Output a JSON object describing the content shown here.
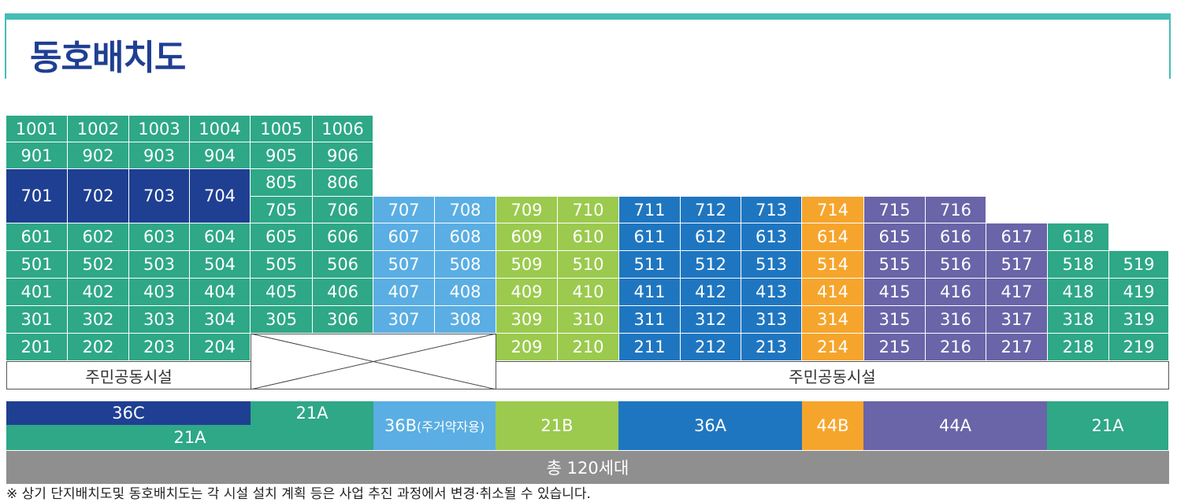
{
  "title": "동호배치도",
  "colors": {
    "accent_teal": "#45bdb5",
    "green_21A": "#2ea886",
    "navy_36C": "#1f3f92",
    "lightblue_36B": "#5aaee3",
    "lime_21B": "#9bca4e",
    "blue_36A": "#1f76c0",
    "orange_44B": "#f6a52c",
    "purple_44A": "#6a64a8",
    "gray_total": "#8f8f8f"
  },
  "rows": [
    [
      "1001",
      "1002",
      "1003",
      "1004",
      "1005",
      "1006"
    ],
    [
      "901",
      "902",
      "903",
      "904",
      "905",
      "906"
    ],
    [
      "701",
      "702",
      "703",
      "704",
      "805",
      "806"
    ],
    [
      "705",
      "706",
      "707",
      "708",
      "709",
      "710",
      "711",
      "712",
      "713",
      "714",
      "715",
      "716"
    ],
    [
      "601",
      "602",
      "603",
      "604",
      "605",
      "606",
      "607",
      "608",
      "609",
      "610",
      "611",
      "612",
      "613",
      "614",
      "615",
      "616",
      "617",
      "618"
    ],
    [
      "501",
      "502",
      "503",
      "504",
      "505",
      "506",
      "507",
      "508",
      "509",
      "510",
      "511",
      "512",
      "513",
      "514",
      "515",
      "516",
      "517",
      "518",
      "519"
    ],
    [
      "401",
      "402",
      "403",
      "404",
      "405",
      "406",
      "407",
      "408",
      "409",
      "410",
      "411",
      "412",
      "413",
      "414",
      "415",
      "416",
      "417",
      "418",
      "419"
    ],
    [
      "301",
      "302",
      "303",
      "304",
      "305",
      "306",
      "307",
      "308",
      "309",
      "310",
      "311",
      "312",
      "313",
      "314",
      "315",
      "316",
      "317",
      "318",
      "319"
    ],
    [
      "201",
      "202",
      "203",
      "204",
      "209",
      "210",
      "211",
      "212",
      "213",
      "214",
      "215",
      "216",
      "217",
      "218",
      "219"
    ]
  ],
  "facility_label_left": "주민공동시설",
  "facility_label_right": "주민공동시설",
  "legend": {
    "36C": "36C",
    "21A_top": "21A",
    "21A_left": "21A",
    "36B": "36B",
    "36B_note": "(주거약자용)",
    "21B": "21B",
    "36A": "36A",
    "44B": "44B",
    "44A": "44A",
    "21A_right": "21A"
  },
  "total": "총 120세대",
  "note": "※ 상기 단지배치도및 동호배치도는 각 시설 설치 계획 등은 사업 추진 과정에서 변경·취소될 수 있습니다."
}
